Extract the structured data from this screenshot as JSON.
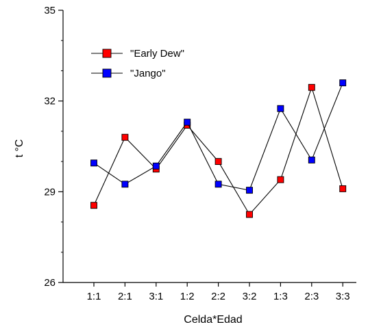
{
  "chart_data": {
    "type": "line",
    "xlabel": "Celda*Edad",
    "ylabel": "t °C",
    "categories": [
      "1:1",
      "2:1",
      "3:1",
      "1:2",
      "2:2",
      "3:2",
      "1:3",
      "2:3",
      "3:3"
    ],
    "ylim": [
      26,
      35
    ],
    "yticks": [
      26,
      29,
      32,
      35
    ],
    "grid": false,
    "legend_position": "top-left",
    "series": [
      {
        "name": "\"Early Dew\"",
        "color": "#ff0000",
        "marker": "square",
        "values": [
          28.55,
          30.8,
          29.75,
          31.2,
          30.0,
          28.25,
          29.4,
          32.45,
          29.1
        ]
      },
      {
        "name": "\"Jango\"",
        "color": "#0000ff",
        "marker": "square",
        "values": [
          29.95,
          29.25,
          29.85,
          31.3,
          29.25,
          29.05,
          31.75,
          30.05,
          32.6
        ]
      }
    ]
  }
}
